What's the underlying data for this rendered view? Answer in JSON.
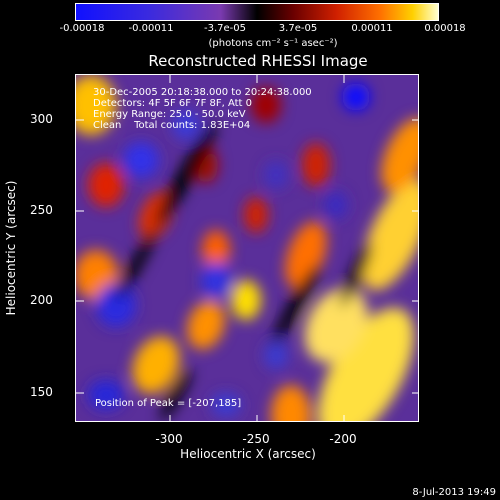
{
  "colorbar": {
    "ticks": [
      "-0.00018",
      "-0.00011",
      "-3.7e-05",
      "3.7e-05",
      "0.00011",
      "0.00018"
    ],
    "unit": "(photons cm⁻² s⁻¹ asec⁻²)"
  },
  "title": "Reconstructed RHESSI Image",
  "info": {
    "time_range": "30-Dec-2005 20:18:38.000 to 20:24:38.000",
    "detectors": "Detectors: 4F 5F 6F 7F 8F, Att 0",
    "energy": "Energy Range: 25.0 - 50.0 keV",
    "clean": "Clean    Total counts: 1.83E+04",
    "peak": "Position of Peak = [-207,185]"
  },
  "x_axis": {
    "label": "Heliocentric X (arcsec)",
    "ticks": [
      "-300",
      "-250",
      "-200"
    ]
  },
  "y_axis": {
    "label": "Heliocentric Y (arcsec)",
    "ticks": [
      "300",
      "250",
      "200",
      "150"
    ]
  },
  "timestamp": "8-Jul-2013 19:49",
  "colors": {
    "negative": "#1010ff",
    "zero": "#000000",
    "positive": "#ffd000"
  }
}
